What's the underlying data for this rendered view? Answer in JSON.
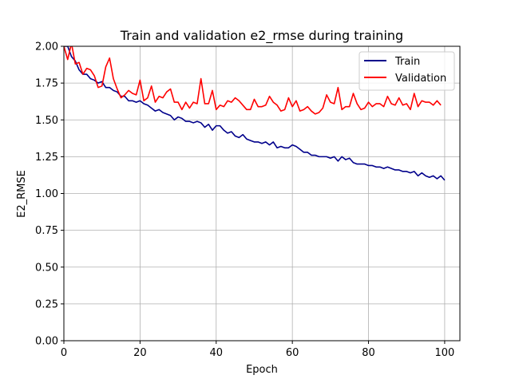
{
  "chart_data": {
    "type": "line",
    "title": "Train and validation e2_rmse during training",
    "xlabel": "Epoch",
    "ylabel": "E2_RMSE",
    "xlim": [
      0,
      104
    ],
    "ylim": [
      0,
      2.0
    ],
    "xticks": [
      0,
      20,
      40,
      60,
      80,
      100
    ],
    "yticks": [
      0.0,
      0.25,
      0.5,
      0.75,
      1.0,
      1.25,
      1.5,
      1.75,
      2.0
    ],
    "ytick_labels": [
      "0.00",
      "0.25",
      "0.50",
      "0.75",
      "1.00",
      "1.25",
      "1.50",
      "1.75",
      "2.00"
    ],
    "xtick_labels": [
      "0",
      "20",
      "40",
      "60",
      "80",
      "100"
    ],
    "grid": true,
    "legend_position": "top-right",
    "series": [
      {
        "name": "Train",
        "color": "#00008b",
        "values": [
          2.0,
          2.0,
          1.93,
          1.9,
          1.84,
          1.81,
          1.81,
          1.78,
          1.77,
          1.75,
          1.76,
          1.72,
          1.72,
          1.7,
          1.69,
          1.66,
          1.66,
          1.63,
          1.63,
          1.62,
          1.63,
          1.61,
          1.6,
          1.58,
          1.56,
          1.57,
          1.55,
          1.54,
          1.53,
          1.5,
          1.52,
          1.51,
          1.49,
          1.49,
          1.48,
          1.49,
          1.48,
          1.45,
          1.47,
          1.43,
          1.46,
          1.46,
          1.43,
          1.41,
          1.42,
          1.39,
          1.38,
          1.4,
          1.37,
          1.36,
          1.35,
          1.35,
          1.34,
          1.35,
          1.33,
          1.35,
          1.31,
          1.32,
          1.31,
          1.31,
          1.33,
          1.32,
          1.3,
          1.28,
          1.28,
          1.26,
          1.26,
          1.25,
          1.25,
          1.25,
          1.24,
          1.25,
          1.22,
          1.25,
          1.23,
          1.24,
          1.21,
          1.2,
          1.2,
          1.2,
          1.19,
          1.19,
          1.18,
          1.18,
          1.17,
          1.18,
          1.17,
          1.16,
          1.16,
          1.15,
          1.15,
          1.14,
          1.15,
          1.12,
          1.14,
          1.12,
          1.11,
          1.12,
          1.1,
          1.12,
          1.09
        ]
      },
      {
        "name": "Validation",
        "color": "#ff0000",
        "values": [
          2.0,
          1.91,
          2.02,
          1.88,
          1.89,
          1.81,
          1.85,
          1.84,
          1.8,
          1.72,
          1.73,
          1.86,
          1.92,
          1.78,
          1.71,
          1.65,
          1.67,
          1.7,
          1.68,
          1.67,
          1.77,
          1.63,
          1.65,
          1.73,
          1.62,
          1.66,
          1.65,
          1.69,
          1.71,
          1.62,
          1.62,
          1.57,
          1.62,
          1.58,
          1.62,
          1.61,
          1.78,
          1.61,
          1.61,
          1.7,
          1.57,
          1.6,
          1.59,
          1.63,
          1.62,
          1.65,
          1.63,
          1.6,
          1.57,
          1.57,
          1.64,
          1.59,
          1.59,
          1.6,
          1.66,
          1.62,
          1.6,
          1.56,
          1.57,
          1.65,
          1.59,
          1.63,
          1.56,
          1.57,
          1.59,
          1.56,
          1.54,
          1.55,
          1.58,
          1.67,
          1.62,
          1.61,
          1.72,
          1.57,
          1.59,
          1.59,
          1.68,
          1.61,
          1.57,
          1.58,
          1.62,
          1.59,
          1.61,
          1.61,
          1.59,
          1.66,
          1.61,
          1.6,
          1.65,
          1.6,
          1.61,
          1.57,
          1.68,
          1.59,
          1.63,
          1.62,
          1.62,
          1.6,
          1.63,
          1.6
        ]
      }
    ]
  }
}
